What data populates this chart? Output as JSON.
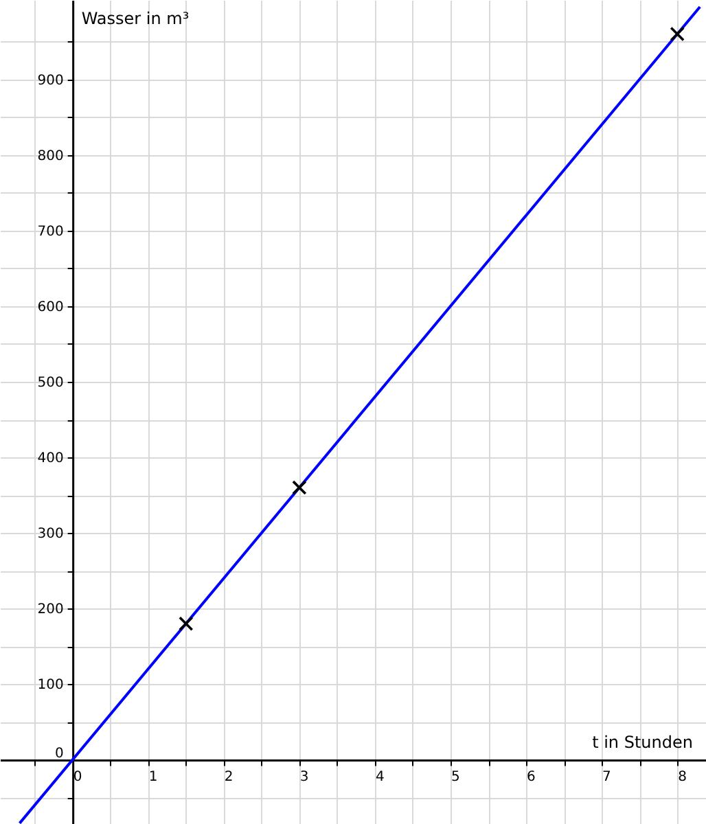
{
  "chart_data": {
    "type": "line",
    "xlabel": "t in Stunden",
    "ylabel": "Wasser in m³",
    "xlim": [
      -0.96,
      8.38
    ],
    "ylim": [
      -85,
      1005
    ],
    "xticks": [
      {
        "value": -0.5,
        "label": null
      },
      0,
      {
        "value": 0.5,
        "label": null
      },
      1,
      {
        "value": 1.5,
        "label": null
      },
      2,
      {
        "value": 2.5,
        "label": null
      },
      3,
      {
        "value": 3.5,
        "label": null
      },
      4,
      {
        "value": 4.5,
        "label": null
      },
      5,
      {
        "value": 5.5,
        "label": null
      },
      6,
      {
        "value": 6.5,
        "label": null
      },
      7,
      {
        "value": 7.5,
        "label": null
      },
      8
    ],
    "yticks": [
      {
        "value": -50,
        "label": null
      },
      0,
      {
        "value": 50,
        "label": null
      },
      100,
      {
        "value": 150,
        "label": null
      },
      200,
      {
        "value": 250,
        "label": null
      },
      300,
      {
        "value": 350,
        "label": null
      },
      400,
      {
        "value": 450,
        "label": null
      },
      500,
      {
        "value": 550,
        "label": null
      },
      600,
      {
        "value": 650,
        "label": null
      },
      700,
      {
        "value": 750,
        "label": null
      },
      800,
      {
        "value": 850,
        "label": null
      },
      900,
      {
        "value": 950,
        "label": null
      }
    ],
    "grid": true,
    "series": [
      {
        "color": "#0000ff",
        "x": [
          -0.7,
          8.3
        ],
        "values": [
          -84,
          996
        ],
        "line_style": "solid"
      },
      {
        "type": "scatter",
        "color": "#000000",
        "x": [
          1.5,
          3,
          8
        ],
        "values": [
          180,
          360,
          960
        ],
        "marker": "cross"
      }
    ]
  }
}
